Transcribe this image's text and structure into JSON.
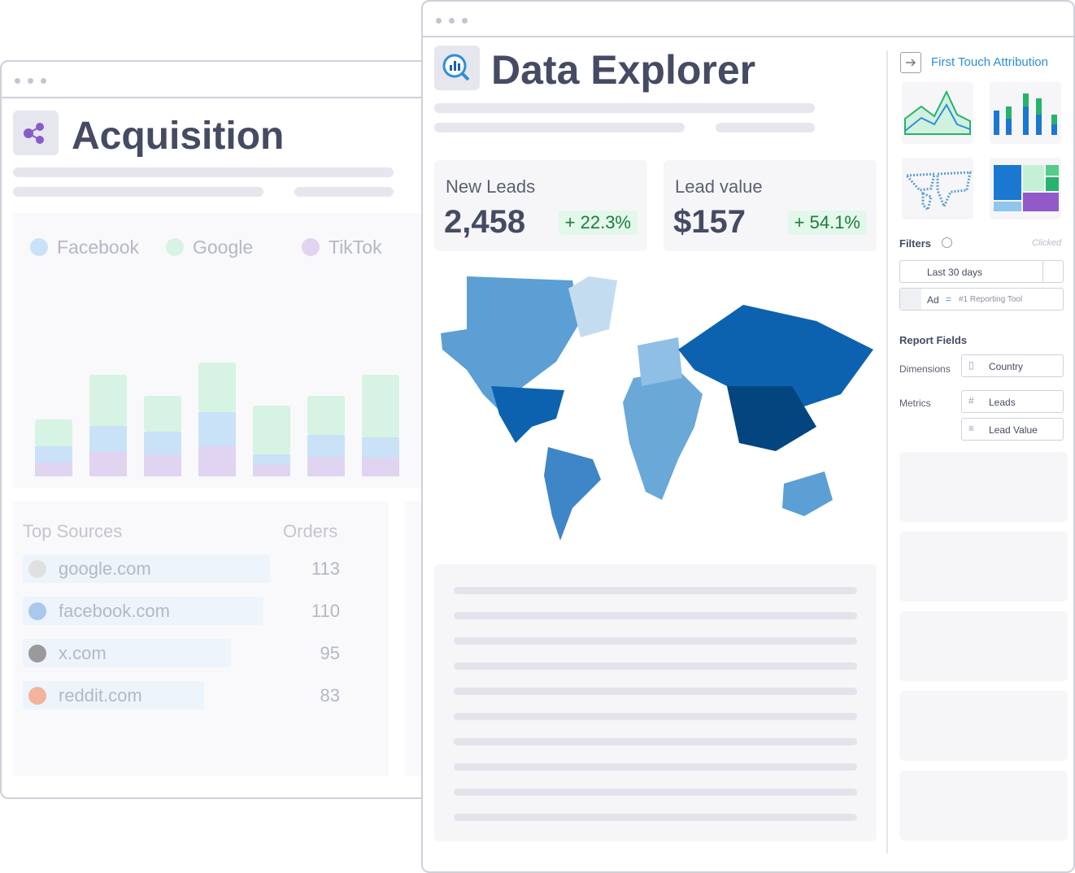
{
  "acquisition": {
    "title": "Acquisition",
    "chart": {
      "type": "bar",
      "series": [
        {
          "name": "Facebook",
          "color": "#c9e2f8",
          "values": [
            20,
            32,
            29,
            42,
            13,
            27,
            25
          ]
        },
        {
          "name": "Google",
          "color": "#d6f3e4",
          "values": [
            33,
            63,
            44,
            61,
            60,
            48,
            77
          ]
        },
        {
          "name": "TikTok",
          "color": "#e0d4f1",
          "values": [
            17,
            30,
            26,
            37,
            14,
            24,
            23
          ]
        }
      ],
      "stack_order": [
        2,
        0,
        1
      ]
    },
    "table": {
      "headers": [
        "Top Sources",
        "Orders"
      ],
      "rows": [
        {
          "source": "google.com",
          "orders": 113
        },
        {
          "source": "facebook.com",
          "orders": 110
        },
        {
          "source": "x.com",
          "orders": 95
        },
        {
          "source": "reddit.com",
          "orders": 83
        }
      ]
    }
  },
  "explorer": {
    "title": "Data Explorer",
    "cards": [
      {
        "label": "New Leads",
        "value": "2,458",
        "change": "+ 22.3%"
      },
      {
        "label": "Lead value",
        "value": "$157",
        "change": "+ 54.1%"
      }
    ],
    "panel": {
      "attribution": "First Touch Attribution",
      "filters_label": "Filters",
      "clicked": "Clicked",
      "date_filter": "Last 30 days",
      "ad_filter": {
        "field": "Ad",
        "operator": "=",
        "value": "#1 Reporting Tool"
      },
      "report_fields": "Report Fields",
      "dimensions_label": "Dimensions",
      "dimensions": [
        "Country"
      ],
      "metrics_label": "Metrics",
      "metrics": [
        "Leads",
        "Lead Value"
      ]
    }
  }
}
